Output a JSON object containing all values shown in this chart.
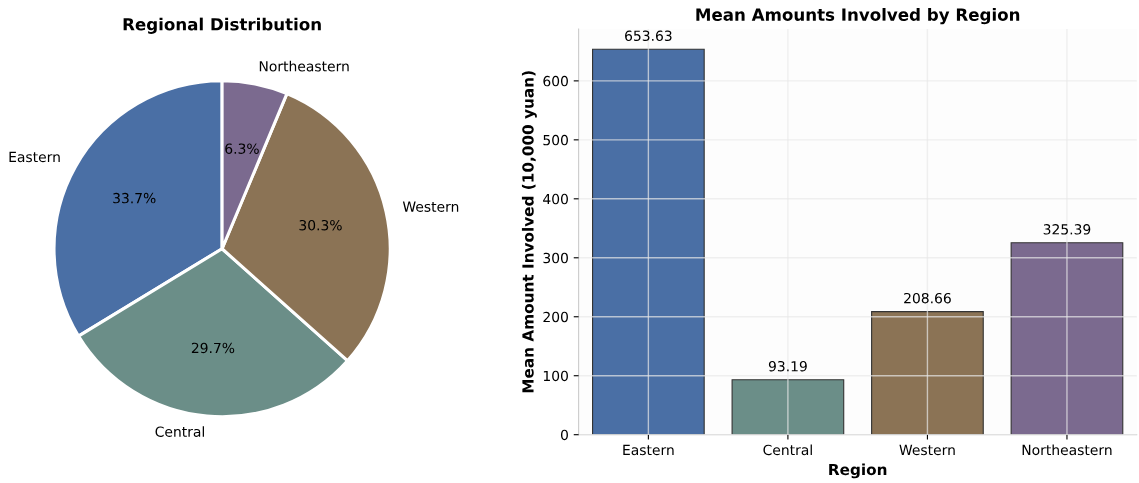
{
  "chart_data": [
    {
      "type": "pie",
      "title": "Regional Distribution",
      "categories": [
        "Eastern",
        "Central",
        "Western",
        "Northeastern"
      ],
      "values": [
        33.7,
        29.7,
        30.3,
        6.3
      ],
      "value_labels": [
        "33.7%",
        "29.7%",
        "30.3%",
        "6.3%"
      ],
      "colors": [
        "#4a6fa5",
        "#6b8e88",
        "#8b7355",
        "#7b6a8f"
      ]
    },
    {
      "type": "bar",
      "title": "Mean Amounts Involved by Region",
      "xlabel": "Region",
      "ylabel": "Mean Amount Involved (10,000 yuan)",
      "categories": [
        "Eastern",
        "Central",
        "Western",
        "Northeastern"
      ],
      "values": [
        653.63,
        93.19,
        208.66,
        325.39
      ],
      "colors": [
        "#4a6fa5",
        "#6b8e88",
        "#8b7355",
        "#7b6a8f"
      ],
      "ylim": [
        0,
        688
      ],
      "yticks": [
        0,
        100,
        200,
        300,
        400,
        500,
        600
      ],
      "grid": true,
      "data_labels": true
    }
  ]
}
